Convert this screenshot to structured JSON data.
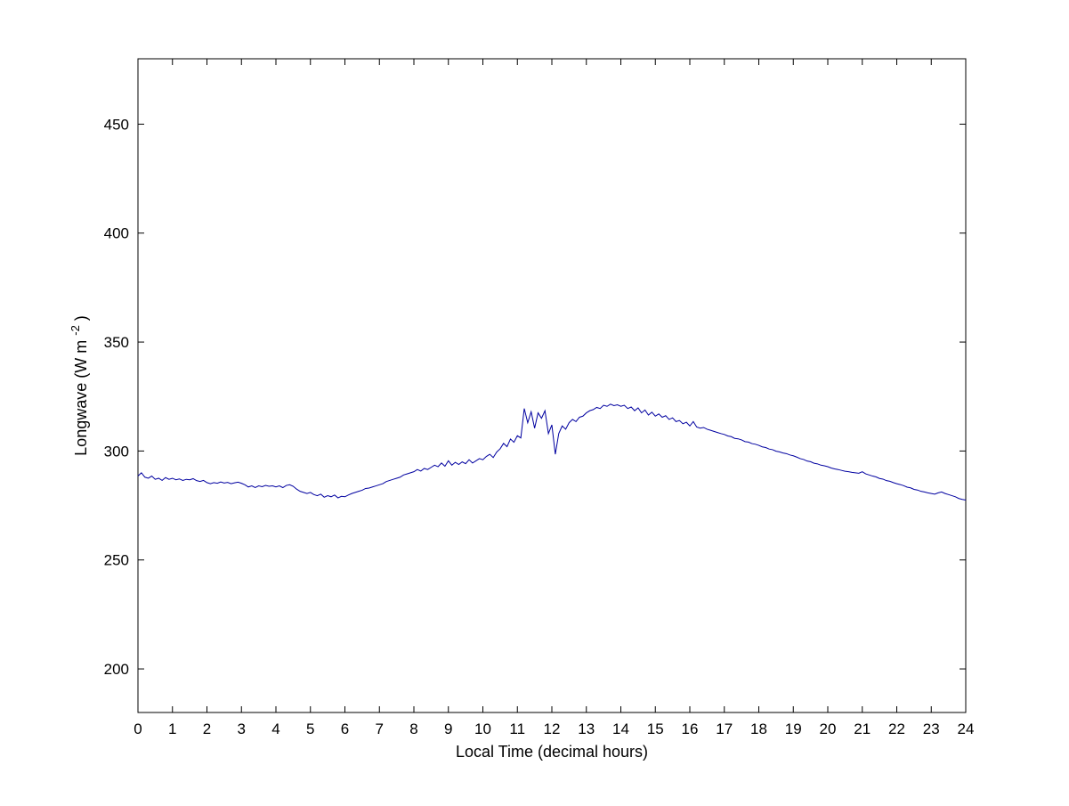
{
  "figure": {
    "background": "#ffffff",
    "axis_color": "#000000"
  },
  "chart_data": {
    "type": "line",
    "title": "",
    "xlabel": "Local Time (decimal hours)",
    "ylabel": "Longwave (W m⁻²)",
    "ylabel_parts": {
      "prefix": "Longwave (W m",
      "sup": "-2",
      "suffix": ")"
    },
    "xlim": [
      0,
      24
    ],
    "ylim": [
      180,
      480
    ],
    "x_ticks": [
      0,
      1,
      2,
      3,
      4,
      5,
      6,
      7,
      8,
      9,
      10,
      11,
      12,
      13,
      14,
      15,
      16,
      17,
      18,
      19,
      20,
      21,
      22,
      23,
      24
    ],
    "y_ticks": [
      200,
      250,
      300,
      350,
      400,
      450
    ],
    "grid": false,
    "legend": "none",
    "line_color": "#0000A0",
    "series": [
      {
        "name": "longwave",
        "x_start": 0,
        "x_step": 0.1,
        "values": [
          288.5,
          290.0,
          288.0,
          287.5,
          288.5,
          287.0,
          287.5,
          286.5,
          287.8,
          287.0,
          287.5,
          286.8,
          287.2,
          286.5,
          287.0,
          286.8,
          287.3,
          286.4,
          286.0,
          286.5,
          285.5,
          285.0,
          285.5,
          285.2,
          285.8,
          285.3,
          285.6,
          285.0,
          285.4,
          285.7,
          285.2,
          284.5,
          283.5,
          284.0,
          283.2,
          284.0,
          283.6,
          284.2,
          283.8,
          284.0,
          283.5,
          284.0,
          283.2,
          284.2,
          284.5,
          283.8,
          282.5,
          281.5,
          281.0,
          280.5,
          281.0,
          280.0,
          279.5,
          280.2,
          278.8,
          279.5,
          279.0,
          279.8,
          278.5,
          279.2,
          279.0,
          279.8,
          280.5,
          281.0,
          281.5,
          282.0,
          282.8,
          283.0,
          283.5,
          284.0,
          284.5,
          285.0,
          286.0,
          286.5,
          287.0,
          287.5,
          288.0,
          289.0,
          289.5,
          290.0,
          290.5,
          291.5,
          290.8,
          292.0,
          291.5,
          292.5,
          293.5,
          292.8,
          294.5,
          293.0,
          295.5,
          293.5,
          294.8,
          293.8,
          295.0,
          294.2,
          296.0,
          294.5,
          295.5,
          296.5,
          296.0,
          297.5,
          298.5,
          297.0,
          299.5,
          301.0,
          303.5,
          302.0,
          305.5,
          304.0,
          307.0,
          306.0,
          319.5,
          313.0,
          318.0,
          310.5,
          317.5,
          315.0,
          318.5,
          308.0,
          312.0,
          298.5,
          308.0,
          311.5,
          310.0,
          313.0,
          314.5,
          313.5,
          315.5,
          316.0,
          317.5,
          318.5,
          319.0,
          320.0,
          319.5,
          321.0,
          320.5,
          321.5,
          320.8,
          321.2,
          320.5,
          321.0,
          319.5,
          320.2,
          318.5,
          319.8,
          317.5,
          318.8,
          316.5,
          317.8,
          316.0,
          317.0,
          315.5,
          316.2,
          314.5,
          315.2,
          313.5,
          314.0,
          312.5,
          313.2,
          311.5,
          313.5,
          311.0,
          310.5,
          310.8,
          310.0,
          309.5,
          309.0,
          308.5,
          308.0,
          307.6,
          306.9,
          306.6,
          305.8,
          305.6,
          305.1,
          304.3,
          304.1,
          303.4,
          303.1,
          302.6,
          301.9,
          301.6,
          300.9,
          300.6,
          299.9,
          299.6,
          299.1,
          298.8,
          298.2,
          297.8,
          297.2,
          296.5,
          296.1,
          295.4,
          295.1,
          294.4,
          294.1,
          293.5,
          293.2,
          292.8,
          292.2,
          291.8,
          291.5,
          291.1,
          290.7,
          290.5,
          290.2,
          290.0,
          289.8,
          290.5,
          289.5,
          289.0,
          288.5,
          288.1,
          287.4,
          287.1,
          286.4,
          286.1,
          285.5,
          285.0,
          284.6,
          284.1,
          283.4,
          283.1,
          282.4,
          282.1,
          281.5,
          281.2,
          280.8,
          280.5,
          280.2,
          280.8,
          281.2,
          280.5,
          280.0,
          279.5,
          279.0,
          278.2,
          277.8,
          277.5
        ]
      }
    ]
  }
}
